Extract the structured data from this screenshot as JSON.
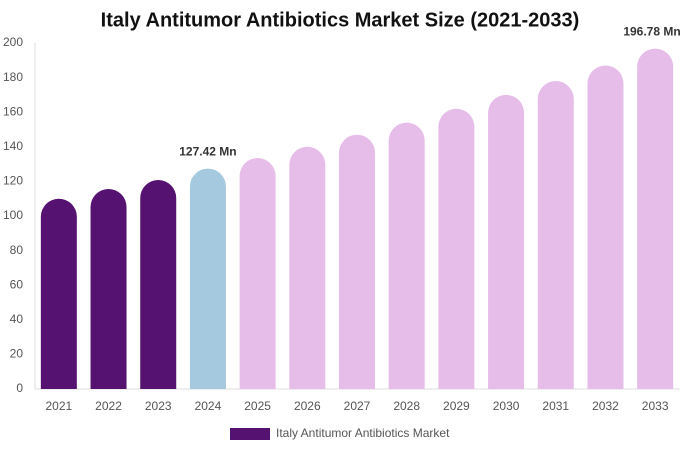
{
  "chart_data": {
    "type": "bar",
    "title": "Italy Antitumor Antibiotics Market Size (2021-2033)",
    "categories": [
      "2021",
      "2022",
      "2023",
      "2024",
      "2025",
      "2026",
      "2027",
      "2028",
      "2029",
      "2030",
      "2031",
      "2032",
      "2033"
    ],
    "series": [
      {
        "name": "Italy Antitumor Antibiotics Market",
        "color": "#561271",
        "values": [
          110,
          115.6,
          120.8,
          127.42,
          133.5,
          140,
          147,
          154,
          162,
          170,
          178,
          187,
          196.78
        ],
        "value_labels": [
          null,
          null,
          null,
          "127.42 Mn",
          null,
          null,
          null,
          null,
          null,
          null,
          null,
          null,
          "196.78 Mn"
        ]
      }
    ],
    "bar_colors": [
      "#561271",
      "#561271",
      "#561271",
      "#a5c9de",
      "#e6bde8",
      "#e6bde8",
      "#e6bde8",
      "#e6bde8",
      "#e6bde8",
      "#e6bde8",
      "#e6bde8",
      "#e6bde8",
      "#e6bde8"
    ],
    "ylim": [
      0,
      200
    ],
    "yticks": [
      0,
      20,
      40,
      60,
      80,
      100,
      120,
      140,
      160,
      180,
      200
    ],
    "grid": false
  }
}
